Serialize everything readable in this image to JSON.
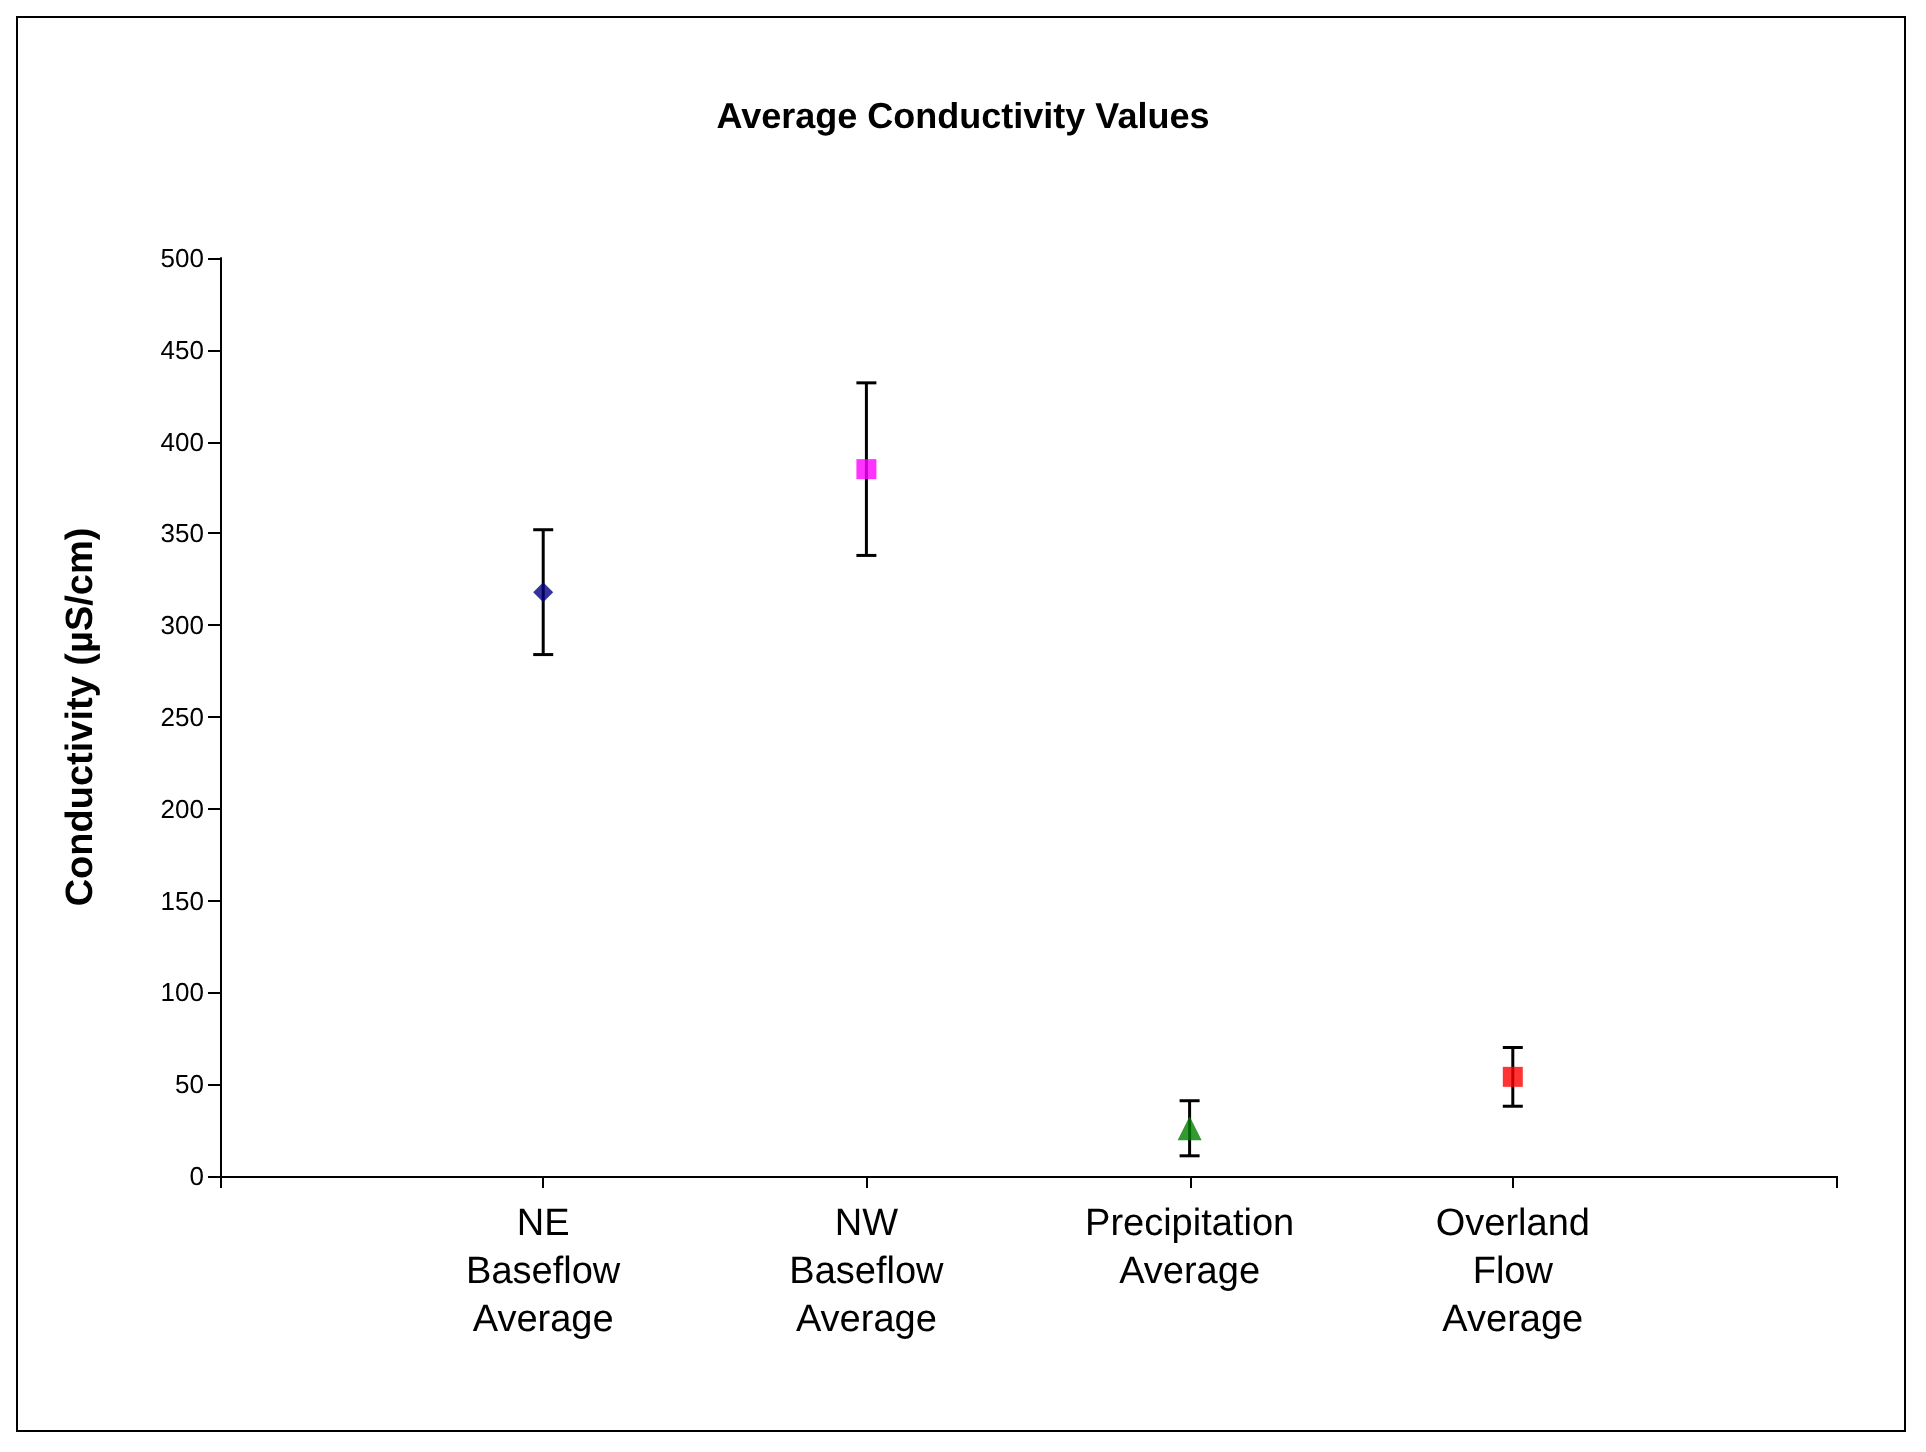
{
  "chart_data": {
    "type": "scatter",
    "title": "Average Conductivity Values",
    "ylabel": "Conductivity (µS/cm)",
    "categories": [
      "NE Baseflow Average",
      "NW Baseflow Average",
      "Precipitation Average",
      "Overland Flow Average"
    ],
    "series": [
      {
        "color": "#000080",
        "marker": "diamond",
        "values": [
          318,
          null,
          null,
          null
        ],
        "errors": [
          34,
          null,
          null,
          null
        ]
      },
      {
        "color": "#ff00ff",
        "marker": "square",
        "values": [
          null,
          385,
          null,
          null
        ],
        "errors": [
          null,
          47,
          null,
          null
        ]
      },
      {
        "color": "#008000",
        "marker": "triangle",
        "values": [
          null,
          null,
          26,
          null
        ],
        "errors": [
          null,
          null,
          15,
          null
        ]
      },
      {
        "color": "#ff0000",
        "marker": "square",
        "values": [
          null,
          null,
          null,
          54
        ],
        "errors": [
          null,
          null,
          null,
          16
        ]
      }
    ],
    "ylim": [
      0,
      500
    ],
    "yticks": [
      0,
      50,
      100,
      150,
      200,
      250,
      300,
      350,
      400,
      450,
      500
    ]
  }
}
